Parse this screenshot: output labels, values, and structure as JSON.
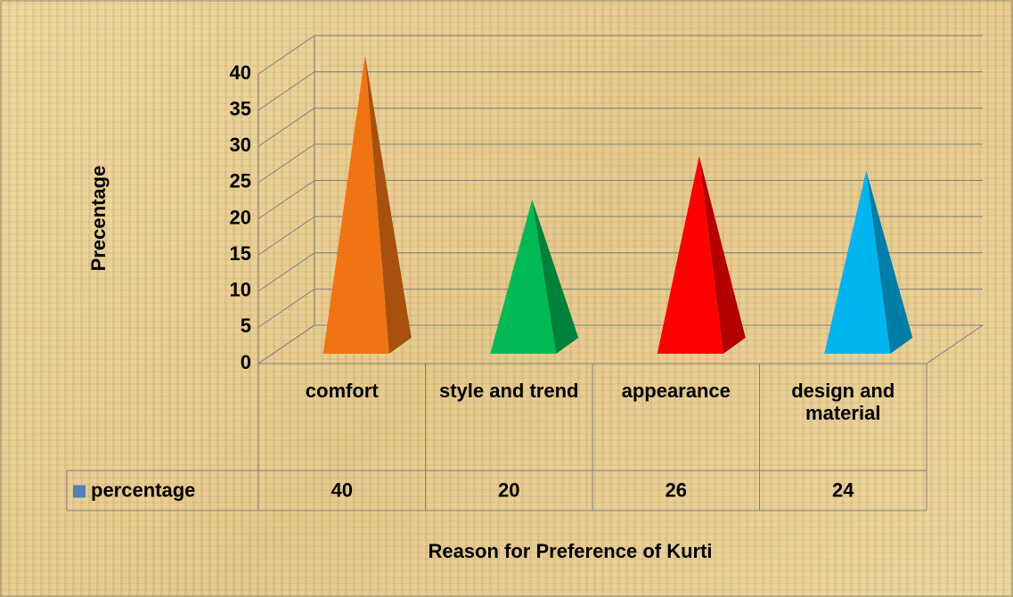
{
  "chart_data": {
    "type": "pyramid3d",
    "y_label": "Precentage",
    "x_label": "Reason for Preference of Kurti",
    "categories": [
      "comfort",
      "style and trend",
      "appearance",
      "design and material"
    ],
    "series": [
      {
        "name": "percentage",
        "color": "#4f81bd",
        "values": [
          40,
          20,
          26,
          24
        ],
        "point_colors": [
          "#f07414",
          "#00b854",
          "#ff0000",
          "#00b4f0"
        ]
      }
    ],
    "ylim": [
      0,
      40
    ],
    "yticks": [
      0,
      5,
      10,
      15,
      20,
      25,
      30,
      35,
      40
    ],
    "grid": true,
    "data_table": true
  }
}
